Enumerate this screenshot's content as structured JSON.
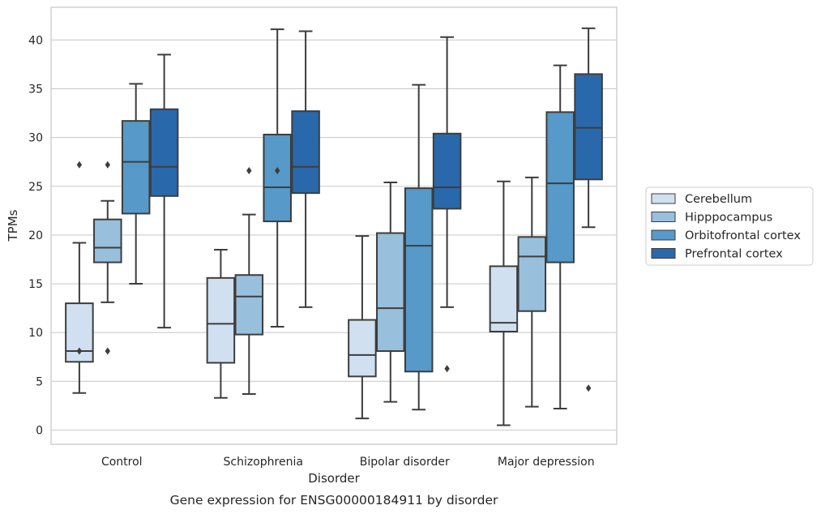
{
  "chart_data": {
    "type": "boxplot",
    "title": "Gene expression for ENSG00000184911 by disorder",
    "xlabel": "Disorder",
    "ylabel": "TPMs",
    "ylim": [
      -1.5,
      43
    ],
    "yticks": [
      0,
      5,
      10,
      15,
      20,
      25,
      30,
      35,
      40
    ],
    "grid": "horizontal",
    "legend_position": "right",
    "categories": [
      "Control",
      "Schizophrenia",
      "Bipolar disorder",
      "Major depression"
    ],
    "series": [
      {
        "name": "Cerebellum",
        "color": "#d0e0f0",
        "boxes": [
          {
            "whislo": 3.8,
            "q1": 7.0,
            "med": 8.1,
            "q3": 13.0,
            "whishi": 19.2,
            "fliers": [
              8.1,
              27.2
            ]
          },
          {
            "whislo": 3.3,
            "q1": 6.9,
            "med": 10.9,
            "q3": 15.6,
            "whishi": 18.5,
            "fliers": []
          },
          {
            "whislo": 1.2,
            "q1": 5.5,
            "med": 7.7,
            "q3": 11.3,
            "whishi": 19.9,
            "fliers": []
          },
          {
            "whislo": 0.5,
            "q1": 10.1,
            "med": 11.0,
            "q3": 16.8,
            "whishi": 25.5,
            "fliers": []
          }
        ]
      },
      {
        "name": "Hipppocampus",
        "color": "#98c0dc",
        "boxes": [
          {
            "whislo": 13.1,
            "q1": 17.2,
            "med": 18.7,
            "q3": 21.6,
            "whishi": 23.5,
            "fliers": [
              8.1,
              27.2
            ]
          },
          {
            "whislo": 3.7,
            "q1": 9.8,
            "med": 13.7,
            "q3": 15.9,
            "whishi": 22.1,
            "fliers": [
              26.6
            ]
          },
          {
            "whislo": 2.9,
            "q1": 8.1,
            "med": 12.5,
            "q3": 20.2,
            "whishi": 25.4,
            "fliers": []
          },
          {
            "whislo": 2.4,
            "q1": 12.2,
            "med": 17.8,
            "q3": 19.8,
            "whishi": 25.9,
            "fliers": []
          }
        ]
      },
      {
        "name": "Orbitofrontal cortex",
        "color": "#5799c8",
        "boxes": [
          {
            "whislo": 15.0,
            "q1": 22.2,
            "med": 27.5,
            "q3": 31.7,
            "whishi": 35.5,
            "fliers": []
          },
          {
            "whislo": 10.6,
            "q1": 21.4,
            "med": 24.9,
            "q3": 30.3,
            "whishi": 41.1,
            "fliers": [
              26.6
            ]
          },
          {
            "whislo": 2.1,
            "q1": 6.0,
            "med": 18.9,
            "q3": 24.8,
            "whishi": 35.4,
            "fliers": []
          },
          {
            "whislo": 2.2,
            "q1": 17.2,
            "med": 25.3,
            "q3": 32.6,
            "whishi": 37.4,
            "fliers": []
          }
        ]
      },
      {
        "name": "Prefrontal cortex",
        "color": "#2a68ac",
        "boxes": [
          {
            "whislo": 10.5,
            "q1": 24.0,
            "med": 27.0,
            "q3": 32.9,
            "whishi": 38.5,
            "fliers": []
          },
          {
            "whislo": 12.6,
            "q1": 24.3,
            "med": 27.0,
            "q3": 32.7,
            "whishi": 40.9,
            "fliers": []
          },
          {
            "whislo": 12.6,
            "q1": 22.7,
            "med": 24.9,
            "q3": 30.4,
            "whishi": 40.3,
            "fliers": [
              6.3
            ]
          },
          {
            "whislo": 20.8,
            "q1": 25.7,
            "med": 31.0,
            "q3": 36.5,
            "whishi": 41.2,
            "fliers": [
              4.3
            ]
          }
        ]
      }
    ]
  }
}
